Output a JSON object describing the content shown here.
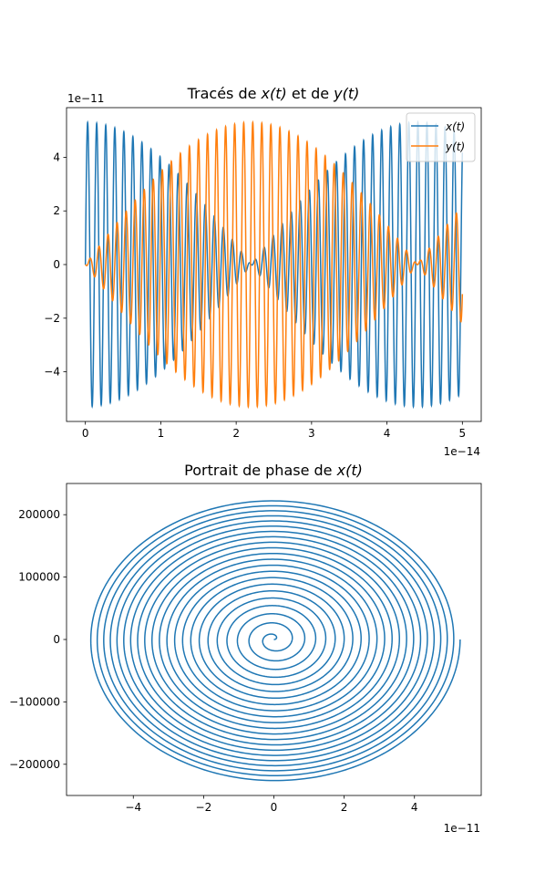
{
  "chart_data": [
    {
      "type": "line",
      "title_prefix": "Tracés de ",
      "title_var1": "x(t)",
      "title_mid": " et de ",
      "title_var2": "y(t)",
      "x_offset_label": "1e−14",
      "y_offset_label": "1e−11",
      "xlim": [
        -0.25,
        5.25
      ],
      "ylim": [
        -5.85,
        5.85
      ],
      "x_ticks": [
        0,
        1,
        2,
        3,
        4,
        5
      ],
      "x_tick_labels": [
        "0",
        "1",
        "2",
        "3",
        "4",
        "5"
      ],
      "y_ticks": [
        -4,
        -2,
        0,
        2,
        4
      ],
      "y_tick_labels": [
        "−4",
        "−2",
        "0",
        "2",
        "4"
      ],
      "legend_position": "upper right",
      "series": [
        {
          "name": "x(t)",
          "color": "#1f77b4",
          "amplitude": 5.3,
          "period": 0.12,
          "description_envelope": "beat minimum near t=2.2 and t=0"
        },
        {
          "name": "y(t)",
          "color": "#ff7f0e",
          "amplitude": 5.3,
          "period": 0.12
        }
      ]
    },
    {
      "type": "line",
      "title_prefix": "Portrait de phase de ",
      "title_var1": "x(t)",
      "x_offset_label": "1e−11",
      "xlim": [
        -5.9,
        5.9
      ],
      "ylim": [
        -250000,
        250000
      ],
      "x_ticks": [
        -4,
        -2,
        0,
        2,
        4
      ],
      "x_tick_labels": [
        "−4",
        "−2",
        "0",
        "2",
        "4"
      ],
      "y_ticks": [
        -200000,
        -100000,
        0,
        100000,
        200000
      ],
      "y_tick_labels": [
        "−200000",
        "−100000",
        "0",
        "100000",
        "200000"
      ],
      "series": [
        {
          "color": "#1f77b4",
          "x_max": 5.3,
          "v_max": 228000
        }
      ]
    }
  ]
}
